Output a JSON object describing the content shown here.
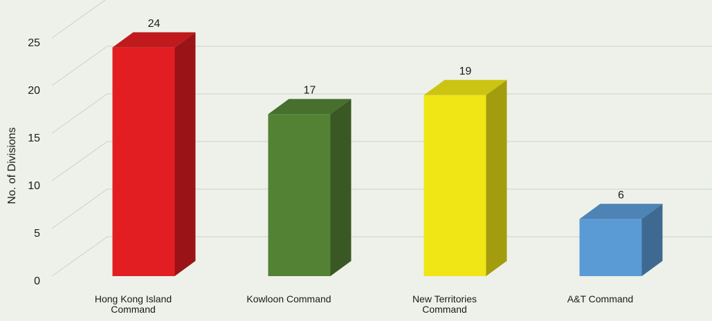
{
  "chart_data": {
    "type": "bar3d",
    "y_label": "No. of Divisions",
    "categories": [
      "Hong Kong Island Command",
      "Kowloon Command",
      "New Territories Command",
      "A&T Command"
    ],
    "values": [
      24,
      17,
      19,
      6
    ],
    "colors": [
      "#e21e22",
      "#548235",
      "#f0e616",
      "#5b9bd5"
    ],
    "ylim": [
      0,
      25
    ],
    "yticks": [
      0,
      5,
      10,
      15,
      20,
      25
    ],
    "grid": true
  }
}
